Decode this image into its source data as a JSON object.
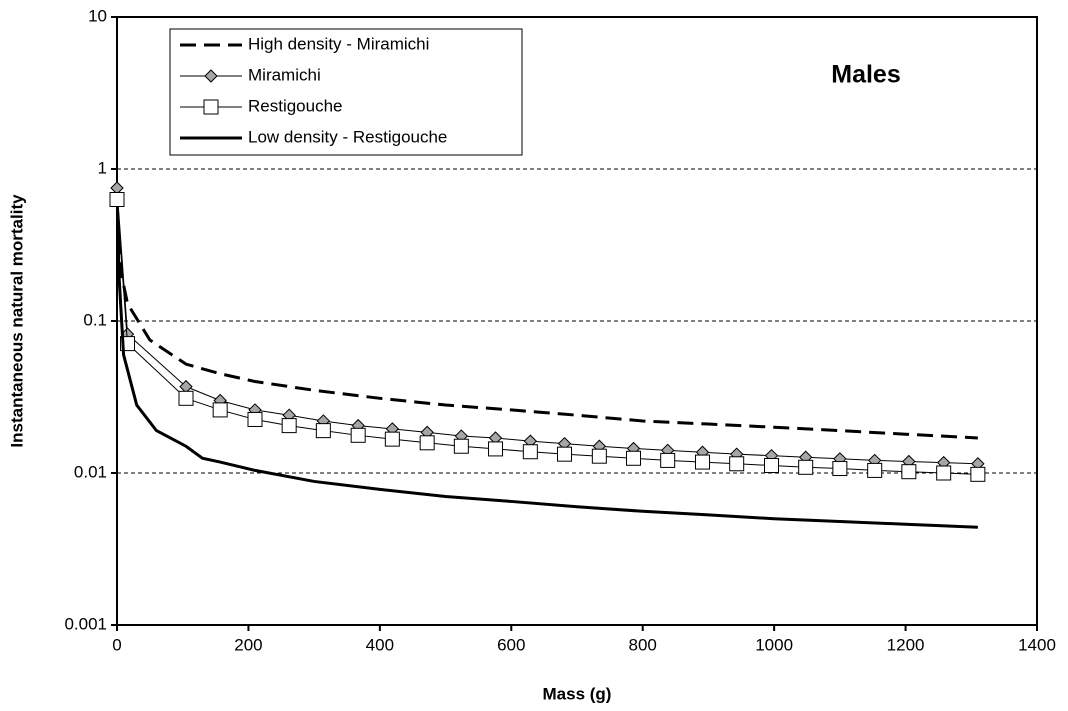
{
  "chart_data": {
    "type": "line",
    "x_label": "Mass (g)",
    "y_label": "Instantaneous natural mortality",
    "annotation": "Males",
    "log_y": true,
    "grid": true,
    "legend": "upper left",
    "xlim": [
      0,
      1400
    ],
    "xticks": [
      0,
      200,
      400,
      600,
      800,
      1000,
      1200,
      1400
    ],
    "ylim": [
      0.001,
      10
    ],
    "yticks": [
      0.001,
      0.01,
      0.1,
      1,
      10
    ],
    "series": [
      {
        "name": "High density - Miramichi",
        "color": "#000000",
        "dash": true,
        "marker": "none",
        "x": [
          2,
          5,
          16,
          50,
          105,
          157,
          210,
          300,
          400,
          500,
          600,
          700,
          800,
          900,
          1000,
          1100,
          1200,
          1310
        ],
        "values": [
          0.35,
          0.22,
          0.13,
          0.075,
          0.052,
          0.045,
          0.04,
          0.035,
          0.031,
          0.028,
          0.026,
          0.024,
          0.022,
          0.021,
          0.02,
          0.019,
          0.018,
          0.017
        ]
      },
      {
        "name": "Miramichi",
        "color": "#000000",
        "dash": false,
        "marker": "diamond",
        "x": [
          0,
          16,
          105,
          157,
          210,
          262,
          314,
          367,
          419,
          472,
          524,
          576,
          629,
          681,
          734,
          786,
          838,
          891,
          943,
          996,
          1048,
          1100,
          1153,
          1205,
          1258,
          1310
        ],
        "values": [
          0.75,
          0.082,
          0.037,
          0.03,
          0.026,
          0.024,
          0.022,
          0.0205,
          0.0195,
          0.0185,
          0.0175,
          0.017,
          0.0162,
          0.0156,
          0.015,
          0.0145,
          0.0141,
          0.0137,
          0.0133,
          0.013,
          0.0127,
          0.0124,
          0.0121,
          0.0119,
          0.0117,
          0.0115
        ]
      },
      {
        "name": "Restigouche",
        "color": "#000000",
        "dash": false,
        "marker": "square",
        "x": [
          0,
          16,
          105,
          157,
          210,
          262,
          314,
          367,
          419,
          472,
          524,
          576,
          629,
          681,
          734,
          786,
          838,
          891,
          943,
          996,
          1048,
          1100,
          1153,
          1205,
          1258,
          1310
        ],
        "values": [
          0.63,
          0.071,
          0.031,
          0.026,
          0.0225,
          0.0205,
          0.019,
          0.0177,
          0.0167,
          0.0158,
          0.015,
          0.0144,
          0.0138,
          0.0133,
          0.0129,
          0.0125,
          0.0121,
          0.0118,
          0.0115,
          0.0112,
          0.0109,
          0.0107,
          0.0104,
          0.0102,
          0.01,
          0.0098
        ]
      },
      {
        "name": "Low density - Restigouche",
        "color": "#000000",
        "dash": false,
        "marker": "none",
        "x": [
          1,
          3,
          10,
          30,
          60,
          105,
          130,
          157,
          210,
          300,
          400,
          500,
          600,
          700,
          800,
          900,
          1000,
          1100,
          1200,
          1310
        ],
        "values": [
          0.45,
          0.2,
          0.06,
          0.028,
          0.019,
          0.015,
          0.0125,
          0.0118,
          0.0104,
          0.0088,
          0.0078,
          0.007,
          0.0065,
          0.006,
          0.0056,
          0.0053,
          0.005,
          0.0048,
          0.0046,
          0.0044
        ]
      }
    ]
  }
}
